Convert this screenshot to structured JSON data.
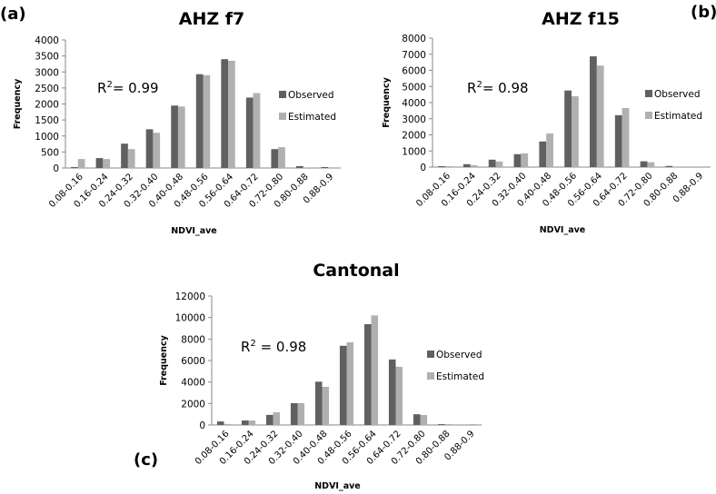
{
  "figure": {
    "series_colors": {
      "Observed": "#606060",
      "Estimated": "#b0b0b0"
    },
    "axis_color": "#888888"
  },
  "chart_data": [
    {
      "id": "a",
      "type": "bar",
      "panel_label": "(a)",
      "title": "AHZ f7",
      "xlabel": "NDVI_ave",
      "ylabel": "Frequency",
      "ylim": [
        0,
        4000
      ],
      "yticks": [
        0,
        500,
        1000,
        1500,
        2000,
        2500,
        3000,
        3500,
        4000
      ],
      "annotation": {
        "base": "R",
        "sup": "2",
        "rest": "= 0.99"
      },
      "legend_position": "right",
      "categories": [
        "0.08-0.16",
        "0.16-0.24",
        "0.24-0.32",
        "0.32-0.40",
        "0.40-0.48",
        "0.48-0.56",
        "0.56-0.64",
        "0.64-0.72",
        "0.72-0.80",
        "0.80-0.88",
        "0.88-0.9"
      ],
      "series": [
        {
          "name": "Observed",
          "values": [
            30,
            310,
            760,
            1210,
            1950,
            2930,
            3400,
            2200,
            590,
            60,
            30
          ]
        },
        {
          "name": "Estimated",
          "values": [
            280,
            280,
            590,
            1100,
            1920,
            2900,
            3350,
            2340,
            650,
            20,
            0
          ]
        }
      ]
    },
    {
      "id": "b",
      "type": "bar",
      "panel_label": "(b)",
      "title": "AHZ f15",
      "xlabel": "NDVI_ave",
      "ylabel": "Frequency",
      "ylim": [
        0,
        8000
      ],
      "yticks": [
        0,
        1000,
        2000,
        3000,
        4000,
        5000,
        6000,
        7000,
        8000
      ],
      "annotation": {
        "base": "R",
        "sup": "2",
        "rest": "= 0.98"
      },
      "legend_position": "right",
      "categories": [
        "0.08-0.16",
        "0.16-0.24",
        "0.24-0.32",
        "0.32-0.40",
        "0.40-0.48",
        "0.48-0.56",
        "0.56-0.64",
        "0.64-0.72",
        "0.72-0.80",
        "0.80-0.88",
        "0.88-0.9"
      ],
      "series": [
        {
          "name": "Observed",
          "values": [
            60,
            180,
            460,
            800,
            1590,
            4750,
            6870,
            3220,
            360,
            70,
            0
          ]
        },
        {
          "name": "Estimated",
          "values": [
            60,
            120,
            350,
            850,
            2090,
            4400,
            6300,
            3660,
            300,
            10,
            0
          ]
        }
      ]
    },
    {
      "id": "c",
      "type": "bar",
      "panel_label": "(c)",
      "title": "Cantonal",
      "xlabel": "NDVI_ave",
      "ylabel": "Frequency",
      "ylim": [
        0,
        12000
      ],
      "yticks": [
        0,
        2000,
        4000,
        6000,
        8000,
        10000,
        12000
      ],
      "annotation": {
        "base": "R",
        "sup": "2",
        "rest": " = 0.98"
      },
      "legend_position": "right",
      "categories": [
        "0.08-0.16",
        "0.16-0.24",
        "0.24-0.32",
        "0.32-0.40",
        "0.40-0.48",
        "0.48-0.56",
        "0.56-0.64",
        "0.64-0.72",
        "0.72-0.80",
        "0.80-0.88",
        "0.88-0.9"
      ],
      "series": [
        {
          "name": "Observed",
          "values": [
            330,
            420,
            940,
            2030,
            4030,
            7370,
            9380,
            6100,
            1000,
            80,
            0
          ]
        },
        {
          "name": "Estimated",
          "values": [
            100,
            420,
            1180,
            2030,
            3550,
            7700,
            10200,
            5420,
            930,
            80,
            80
          ]
        }
      ]
    }
  ]
}
